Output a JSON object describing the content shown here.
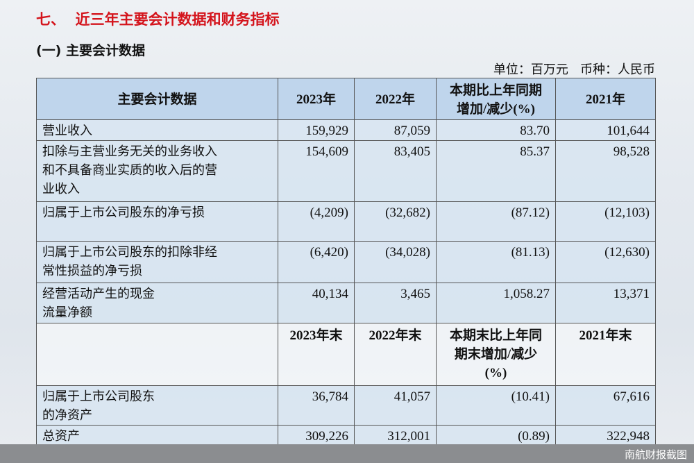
{
  "title": "七、  近三年主要会计数据和财务指标",
  "subtitle": "(一) 主要会计数据",
  "unit": "单位：百万元   币种：人民币",
  "table": {
    "rows": [
      [
        [
          "主要会计数据"
        ],
        [
          "2023年"
        ],
        [
          "2022年"
        ],
        [
          "本期比上年同期",
          "增加/减少(%)"
        ],
        [
          "2021年"
        ]
      ],
      [
        [
          "营业收入"
        ],
        [
          "159,929"
        ],
        [
          "87,059"
        ],
        [
          "83.70"
        ],
        [
          "101,644"
        ]
      ],
      [
        [
          "扣除与主营业务无关的业务收入",
          "和不具备商业实质的收入后的营",
          "业收入"
        ],
        [
          "154,609"
        ],
        [
          "83,405"
        ],
        [
          "85.37"
        ],
        [
          "98,528"
        ]
      ],
      [
        [
          "归属于上市公司股东的净亏损"
        ],
        [
          "(4,209)"
        ],
        [
          "(32,682)"
        ],
        [
          "(87.12)"
        ],
        [
          "(12,103)"
        ]
      ],
      [
        [
          "归属于上市公司股东的扣除非经",
          "常性损益的净亏损"
        ],
        [
          "(6,420)"
        ],
        [
          "(34,028)"
        ],
        [
          "(81.13)"
        ],
        [
          "(12,630)"
        ]
      ],
      [
        [
          "经营活动产生的现金",
          "流量净额"
        ],
        [
          "40,134"
        ],
        [
          "3,465"
        ],
        [
          "1,058.27"
        ],
        [
          "13,371"
        ]
      ],
      [
        [],
        [
          "2023年末"
        ],
        [
          "2022年末"
        ],
        [
          "本期末比上年同",
          "期末增加/减少",
          "(%)"
        ],
        [
          "2021年末"
        ]
      ],
      [
        [
          "归属于上市公司股东",
          "的净资产"
        ],
        [
          "36,784"
        ],
        [
          "41,057"
        ],
        [
          "(10.41)"
        ],
        [
          "67,616"
        ]
      ],
      [
        [
          "总资产"
        ],
        [
          "309,226"
        ],
        [
          "312,001"
        ],
        [
          "(0.89)"
        ],
        [
          "322,948"
        ]
      ]
    ]
  },
  "watermark": "南航财报截图"
}
